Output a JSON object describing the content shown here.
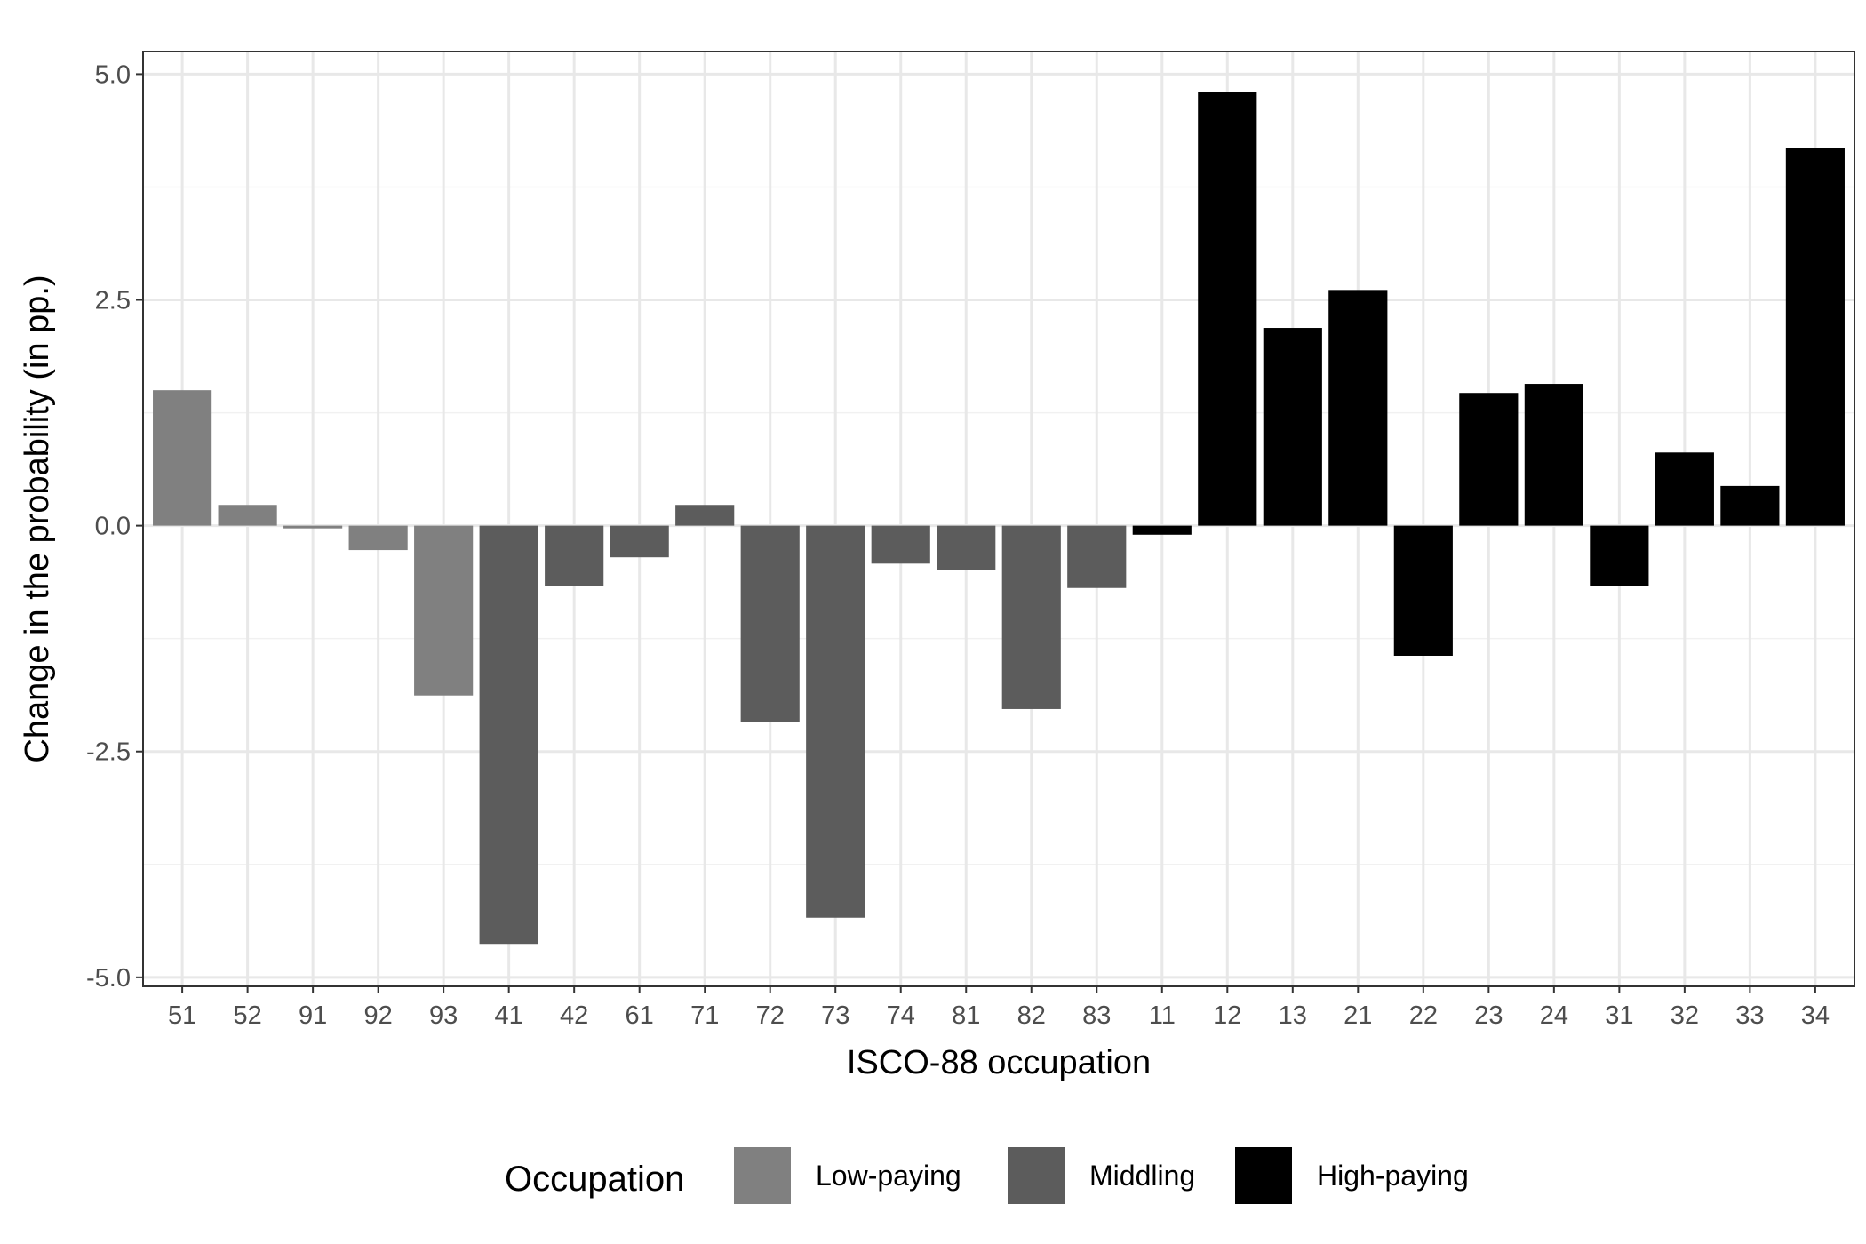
{
  "chart_data": {
    "type": "bar",
    "xlabel": "ISCO-88 occupation",
    "ylabel": "Change in the probability (in pp.)",
    "ylim": [
      -5.1,
      5.25
    ],
    "yticks": [
      5.0,
      2.5,
      0.0,
      -2.5,
      -5.0
    ],
    "ytick_labels": [
      "5.0",
      "2.5",
      "0.0",
      "-2.5",
      "-5.0"
    ],
    "grid": true,
    "legend_position": "bottom",
    "legend_title": "Occupation",
    "groups": [
      {
        "name": "Low-paying",
        "color": "#808080"
      },
      {
        "name": "Middling",
        "color": "#5c5c5c"
      },
      {
        "name": "High-paying",
        "color": "#000000"
      }
    ],
    "categories": [
      "51",
      "52",
      "91",
      "92",
      "93",
      "41",
      "42",
      "61",
      "71",
      "72",
      "73",
      "74",
      "81",
      "82",
      "83",
      "11",
      "12",
      "13",
      "21",
      "22",
      "23",
      "24",
      "31",
      "32",
      "33",
      "34"
    ],
    "values": [
      1.5,
      0.23,
      -0.03,
      -0.27,
      -1.88,
      -4.63,
      -0.67,
      -0.35,
      0.23,
      -2.17,
      -4.34,
      -0.42,
      -0.49,
      -2.03,
      -0.69,
      -0.1,
      4.8,
      2.19,
      2.61,
      -1.44,
      1.47,
      1.57,
      -0.67,
      0.81,
      0.44,
      4.18
    ],
    "bar_groups": [
      "Low-paying",
      "Low-paying",
      "Low-paying",
      "Low-paying",
      "Low-paying",
      "Middling",
      "Middling",
      "Middling",
      "Middling",
      "Middling",
      "Middling",
      "Middling",
      "Middling",
      "Middling",
      "Middling",
      "High-paying",
      "High-paying",
      "High-paying",
      "High-paying",
      "High-paying",
      "High-paying",
      "High-paying",
      "High-paying",
      "High-paying",
      "High-paying",
      "High-paying"
    ]
  }
}
